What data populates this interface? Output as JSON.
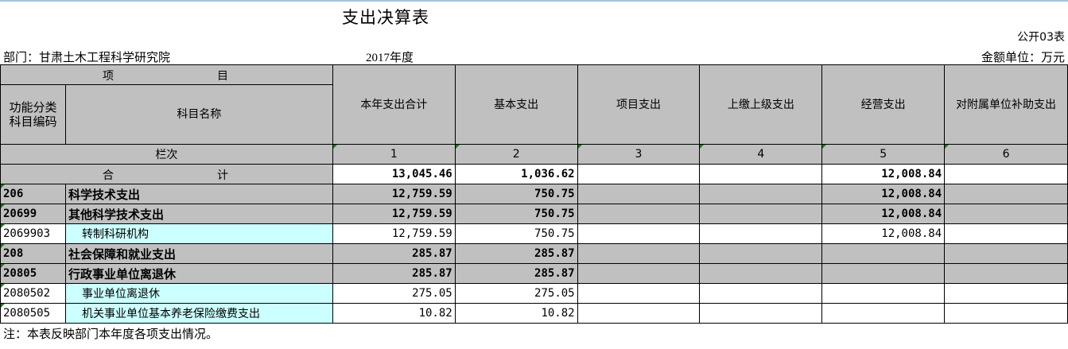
{
  "title": "支出决算表",
  "form_no": "公开03表",
  "department": "部门：甘肃土木工程科学研究院",
  "year": "2017年度",
  "unit": "金额单位：万元",
  "header": {
    "item_left": "项",
    "item_right": "目",
    "code": "功能分类科目编码",
    "name": "科目名称",
    "columns": [
      "本年支出合计",
      "基本支出",
      "项目支出",
      "上缴上级支出",
      "经营支出",
      "对附属单位补助支出"
    ],
    "row_label": "栏次",
    "col_numbers": [
      "1",
      "2",
      "3",
      "4",
      "5",
      "6"
    ]
  },
  "total": {
    "label_left": "合",
    "label_right": "计",
    "values": [
      "13,045.46",
      "1,036.62",
      "",
      "",
      "12,008.84",
      ""
    ]
  },
  "rows": [
    {
      "code": "206",
      "name": "科学技术支出",
      "level": "bold",
      "values": [
        "12,759.59",
        "750.75",
        "",
        "",
        "12,008.84",
        ""
      ]
    },
    {
      "code": "20699",
      "name": "其他科学技术支出",
      "level": "bold",
      "values": [
        "12,759.59",
        "750.75",
        "",
        "",
        "12,008.84",
        ""
      ]
    },
    {
      "code": "2069903",
      "name": "转制科研机构",
      "level": "leaf",
      "values": [
        "12,759.59",
        "750.75",
        "",
        "",
        "12,008.84",
        ""
      ]
    },
    {
      "code": "208",
      "name": "社会保障和就业支出",
      "level": "bold",
      "values": [
        "285.87",
        "285.87",
        "",
        "",
        "",
        ""
      ]
    },
    {
      "code": "20805",
      "name": "行政事业单位离退休",
      "level": "bold",
      "values": [
        "285.87",
        "285.87",
        "",
        "",
        "",
        ""
      ]
    },
    {
      "code": "2080502",
      "name": "事业单位离退休",
      "level": "leaf",
      "values": [
        "275.05",
        "275.05",
        "",
        "",
        "",
        ""
      ]
    },
    {
      "code": "2080505",
      "name": "机关事业单位基本养老保险缴费支出",
      "level": "leaf",
      "values": [
        "10.82",
        "10.82",
        "",
        "",
        "",
        ""
      ]
    }
  ],
  "note": "注：本表反映部门本年度各项支出情况。"
}
